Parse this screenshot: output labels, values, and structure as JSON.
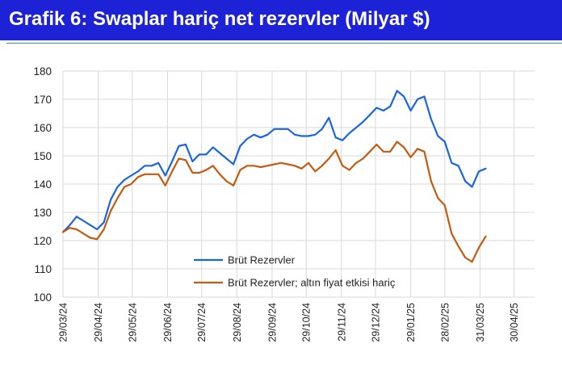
{
  "header": {
    "title": "Grafik 6: Swaplar hariç net rezervler (Milyar $)"
  },
  "colors": {
    "title_background": "#1e22d6",
    "series_1": "#1a66e0",
    "series_2": "#c55a11",
    "grid": "#d9d9d9"
  },
  "chart_data": {
    "type": "line",
    "title": "Grafik 6: Swaplar hariç net rezervler (Milyar $)",
    "xlabel": "",
    "ylabel": "",
    "ylim": [
      100,
      180
    ],
    "y_ticks": [
      100,
      110,
      120,
      130,
      140,
      150,
      160,
      170,
      180
    ],
    "x_tick_labels": [
      "29/03/24",
      "29/04/24",
      "29/05/24",
      "29/06/24",
      "29/07/24",
      "29/08/24",
      "29/09/24",
      "29/10/24",
      "29/11/24",
      "29/12/24",
      "29/01/25",
      "28/02/25",
      "31/03/25",
      "30/04/25"
    ],
    "x_tick_dates": [
      "2024-03-29",
      "2024-04-29",
      "2024-05-29",
      "2024-06-29",
      "2024-07-29",
      "2024-08-29",
      "2024-09-29",
      "2024-10-29",
      "2024-11-29",
      "2024-12-29",
      "2025-01-29",
      "2025-02-28",
      "2025-03-31",
      "2025-04-30"
    ],
    "x_range": [
      "2024-03-29",
      "2025-05-18"
    ],
    "grid": true,
    "legend_position": "lower-center",
    "series": [
      {
        "name": "Brüt Rezervler",
        "color": "#1a66e0",
        "points": [
          [
            "2024-03-29",
            123
          ],
          [
            "2024-04-04",
            125.5
          ],
          [
            "2024-04-10",
            128.5
          ],
          [
            "2024-04-16",
            127
          ],
          [
            "2024-04-22",
            125.5
          ],
          [
            "2024-04-28",
            124
          ],
          [
            "2024-05-04",
            126.5
          ],
          [
            "2024-05-10",
            134.5
          ],
          [
            "2024-05-16",
            139
          ],
          [
            "2024-05-22",
            141.5
          ],
          [
            "2024-05-28",
            143
          ],
          [
            "2024-06-03",
            144.5
          ],
          [
            "2024-06-09",
            146.5
          ],
          [
            "2024-06-15",
            146.5
          ],
          [
            "2024-06-21",
            147.5
          ],
          [
            "2024-06-27",
            143
          ],
          [
            "2024-07-03",
            148
          ],
          [
            "2024-07-09",
            153.5
          ],
          [
            "2024-07-15",
            154
          ],
          [
            "2024-07-21",
            148
          ],
          [
            "2024-07-27",
            150.5
          ],
          [
            "2024-08-02",
            150.5
          ],
          [
            "2024-08-08",
            153
          ],
          [
            "2024-08-14",
            151
          ],
          [
            "2024-08-20",
            149
          ],
          [
            "2024-08-26",
            147
          ],
          [
            "2024-09-01",
            153.5
          ],
          [
            "2024-09-07",
            156
          ],
          [
            "2024-09-13",
            157.5
          ],
          [
            "2024-09-19",
            156.5
          ],
          [
            "2024-09-25",
            157.5
          ],
          [
            "2024-10-01",
            159.5
          ],
          [
            "2024-10-07",
            159.5
          ],
          [
            "2024-10-13",
            159.5
          ],
          [
            "2024-10-19",
            157.5
          ],
          [
            "2024-10-25",
            157
          ],
          [
            "2024-10-31",
            157
          ],
          [
            "2024-11-06",
            157.5
          ],
          [
            "2024-11-12",
            159.5
          ],
          [
            "2024-11-18",
            163.5
          ],
          [
            "2024-11-24",
            156.5
          ],
          [
            "2024-11-30",
            155.5
          ],
          [
            "2024-12-06",
            158
          ],
          [
            "2024-12-12",
            160
          ],
          [
            "2024-12-18",
            162
          ],
          [
            "2024-12-24",
            164.5
          ],
          [
            "2024-12-30",
            167
          ],
          [
            "2025-01-05",
            166
          ],
          [
            "2025-01-11",
            167.5
          ],
          [
            "2025-01-17",
            173
          ],
          [
            "2025-01-23",
            171
          ],
          [
            "2025-01-29",
            166
          ],
          [
            "2025-02-04",
            170
          ],
          [
            "2025-02-10",
            171
          ],
          [
            "2025-02-16",
            163
          ],
          [
            "2025-02-22",
            157
          ],
          [
            "2025-02-28",
            155
          ],
          [
            "2025-03-06",
            147.5
          ],
          [
            "2025-03-12",
            146.5
          ],
          [
            "2025-03-18",
            141
          ],
          [
            "2025-03-24",
            139
          ],
          [
            "2025-03-30",
            144.5
          ],
          [
            "2025-04-05",
            145.5
          ]
        ]
      },
      {
        "name": "Brüt Rezervler; altın fiyat etkisi hariç",
        "color": "#c55a11",
        "points": [
          [
            "2024-03-29",
            123
          ],
          [
            "2024-04-04",
            124.5
          ],
          [
            "2024-04-10",
            124
          ],
          [
            "2024-04-16",
            122.5
          ],
          [
            "2024-04-22",
            121
          ],
          [
            "2024-04-28",
            120.5
          ],
          [
            "2024-05-04",
            124
          ],
          [
            "2024-05-10",
            130.5
          ],
          [
            "2024-05-16",
            135
          ],
          [
            "2024-05-22",
            139
          ],
          [
            "2024-05-28",
            140
          ],
          [
            "2024-06-03",
            142.5
          ],
          [
            "2024-06-09",
            143.5
          ],
          [
            "2024-06-15",
            143.5
          ],
          [
            "2024-06-21",
            143.5
          ],
          [
            "2024-06-27",
            139.5
          ],
          [
            "2024-07-03",
            144.5
          ],
          [
            "2024-07-09",
            149
          ],
          [
            "2024-07-15",
            148.5
          ],
          [
            "2024-07-21",
            144
          ],
          [
            "2024-07-27",
            144
          ],
          [
            "2024-08-02",
            145
          ],
          [
            "2024-08-08",
            146.5
          ],
          [
            "2024-08-14",
            143.5
          ],
          [
            "2024-08-20",
            141
          ],
          [
            "2024-08-26",
            139.5
          ],
          [
            "2024-09-01",
            145
          ],
          [
            "2024-09-07",
            146.5
          ],
          [
            "2024-09-13",
            146.5
          ],
          [
            "2024-09-19",
            146
          ],
          [
            "2024-09-25",
            146.5
          ],
          [
            "2024-10-01",
            147
          ],
          [
            "2024-10-07",
            147.5
          ],
          [
            "2024-10-13",
            147
          ],
          [
            "2024-10-19",
            146.5
          ],
          [
            "2024-10-25",
            145.5
          ],
          [
            "2024-10-31",
            147.5
          ],
          [
            "2024-11-06",
            144.5
          ],
          [
            "2024-11-12",
            146.5
          ],
          [
            "2024-11-18",
            149
          ],
          [
            "2024-11-24",
            152
          ],
          [
            "2024-11-30",
            146.5
          ],
          [
            "2024-12-06",
            145
          ],
          [
            "2024-12-12",
            147.5
          ],
          [
            "2024-12-18",
            149
          ],
          [
            "2024-12-24",
            151.5
          ],
          [
            "2024-12-30",
            154
          ],
          [
            "2025-01-05",
            151.5
          ],
          [
            "2025-01-11",
            151.5
          ],
          [
            "2025-01-17",
            155
          ],
          [
            "2025-01-23",
            153
          ],
          [
            "2025-01-29",
            149.5
          ],
          [
            "2025-02-04",
            152.5
          ],
          [
            "2025-02-10",
            151.5
          ],
          [
            "2025-02-16",
            141
          ],
          [
            "2025-02-22",
            135
          ],
          [
            "2025-02-28",
            132.5
          ],
          [
            "2025-03-06",
            122.5
          ],
          [
            "2025-03-12",
            118
          ],
          [
            "2025-03-18",
            114
          ],
          [
            "2025-03-24",
            112.5
          ],
          [
            "2025-03-30",
            117.5
          ],
          [
            "2025-04-05",
            121.5
          ]
        ]
      }
    ]
  }
}
